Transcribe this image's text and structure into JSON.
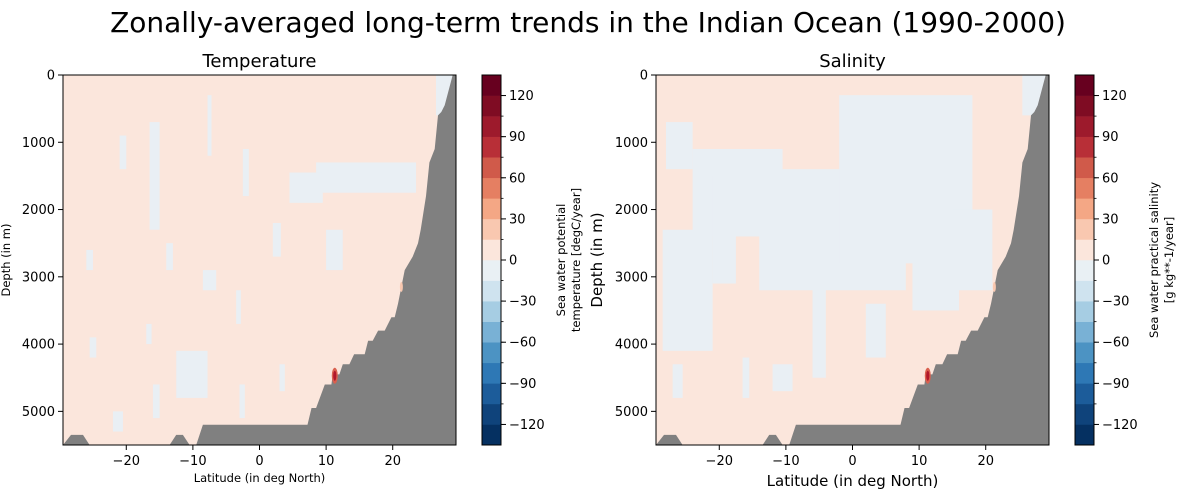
{
  "figure": {
    "suptitle": "Zonally-averaged long-term trends in the Indian Ocean (1990-2000)"
  },
  "chart_data": [
    {
      "type": "heatmap",
      "title": "Temperature",
      "xlabel": "Latitude (in deg North)",
      "ylabel": "Depth (in m)",
      "xlim": [
        -29.5,
        29.5
      ],
      "ylim": [
        5500,
        0
      ],
      "xticks": [
        "−20",
        "−10",
        "0",
        "10",
        "20"
      ],
      "xtick_values": [
        -20,
        -10,
        0,
        10,
        20
      ],
      "yticks": [
        "0",
        "1000",
        "2000",
        "3000",
        "4000",
        "5000"
      ],
      "ytick_values": [
        0,
        1000,
        2000,
        3000,
        4000,
        5000
      ],
      "colorbar": {
        "label_lines": [
          "Sea water potential",
          "temperature [degC/year]"
        ],
        "ticks": [
          "120",
          "90",
          "60",
          "30",
          "0",
          "−30",
          "−60",
          "−90",
          "−120"
        ],
        "tick_values": [
          120,
          90,
          60,
          30,
          0,
          -30,
          -60,
          -90,
          -120
        ],
        "range": [
          -135,
          135
        ],
        "cmap": "RdBu_r"
      },
      "field_colors": {
        "positive_weak": "#fbe6dc",
        "negative_weak": "#e9eff4",
        "land": "#808080",
        "hotspot": "#d73027"
      },
      "land_boundary_lat": [
        -29.5,
        -28.3,
        -26.5,
        -25.5,
        -13.5,
        -12.5,
        -11.5,
        -10.5,
        -9.5,
        -8.5,
        7.2,
        7.8,
        8.5,
        9.8,
        10.8,
        11.0,
        12.0,
        12.5,
        13.5,
        14.2,
        15.8,
        16.3,
        17.0,
        17.8,
        18.8,
        19.8,
        20.3,
        20.8,
        21.2,
        21.8,
        23.0,
        23.8,
        24.2,
        25.0,
        25.5,
        26.3,
        26.8,
        27.3,
        27.8,
        29.0,
        29.5
      ],
      "land_boundary_depth": [
        5500,
        5350,
        5350,
        5500,
        5500,
        5350,
        5350,
        5500,
        5500,
        5200,
        5200,
        4950,
        4950,
        4600,
        4600,
        4450,
        4450,
        4300,
        4300,
        4150,
        4150,
        3950,
        3950,
        3800,
        3800,
        3600,
        3600,
        3400,
        3200,
        2900,
        2700,
        2500,
        2300,
        1800,
        1300,
        1100,
        600,
        550,
        450,
        0,
        0
      ],
      "negative_patches": [
        {
          "lat": [
            25,
            0,
            2000,
            4000
          ],
          "note": ""
        }
      ]
    },
    {
      "type": "heatmap",
      "title": "Salinity",
      "xlabel": "Latitude (in deg North)",
      "ylabel": "Depth (in m)",
      "xlim": [
        -29.5,
        29.5
      ],
      "ylim": [
        5500,
        0
      ],
      "xticks": [
        "−20",
        "−10",
        "0",
        "10",
        "20"
      ],
      "xtick_values": [
        -20,
        -10,
        0,
        10,
        20
      ],
      "yticks": [
        "0",
        "1000",
        "2000",
        "3000",
        "4000",
        "5000"
      ],
      "ytick_values": [
        0,
        1000,
        2000,
        3000,
        4000,
        5000
      ],
      "colorbar": {
        "label_lines": [
          "Sea water practical salinity",
          "[g kg**-1/year]"
        ],
        "ticks": [
          "120",
          "90",
          "60",
          "30",
          "0",
          "−30",
          "−60",
          "−90",
          "−120"
        ],
        "tick_values": [
          120,
          90,
          60,
          30,
          0,
          -30,
          -60,
          -90,
          -120
        ],
        "range": [
          -135,
          135
        ],
        "cmap": "RdBu_r"
      },
      "field_colors": {
        "positive_weak": "#fbe6dc",
        "negative_weak": "#e9eff4",
        "land": "#808080",
        "hotspot": "#d73027"
      }
    }
  ]
}
